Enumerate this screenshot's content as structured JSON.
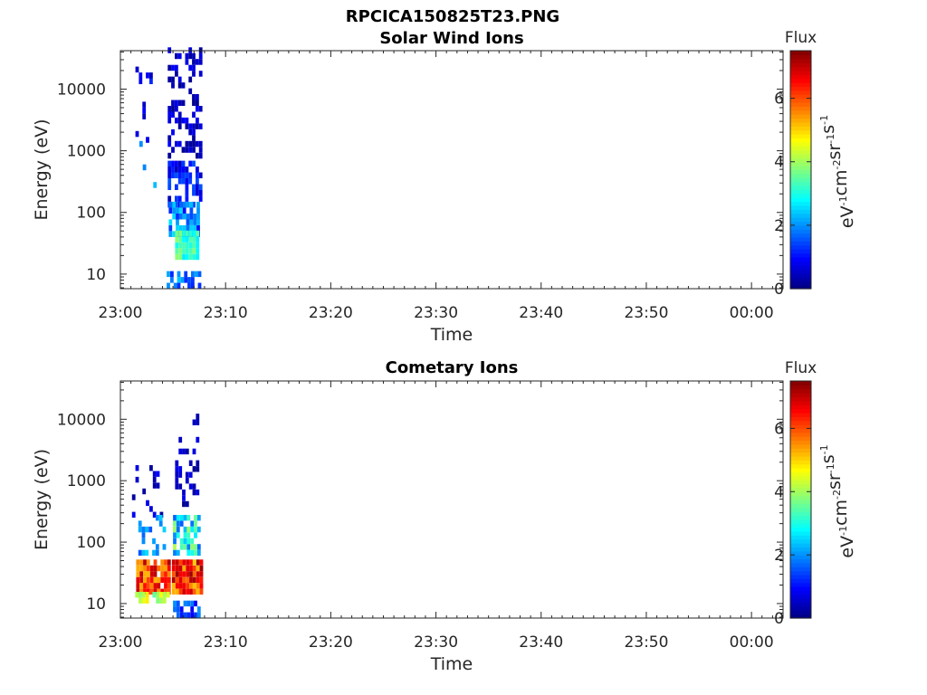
{
  "figure_title": "RPCICA150825T23.PNG",
  "colormap": "jet",
  "chart_data": [
    {
      "type": "heatmap",
      "title": "Solar Wind Ions",
      "xlabel": "Time",
      "ylabel": "Energy (eV)",
      "x_tick_labels": [
        "23:00",
        "23:10",
        "23:20",
        "23:30",
        "23:40",
        "23:50",
        "00:00"
      ],
      "x_range_minutes": [
        0,
        63
      ],
      "y_scale": "log",
      "y_tick_labels": [
        "10",
        "100",
        "1000",
        "10000"
      ],
      "y_tick_values": [
        10,
        100,
        1000,
        10000
      ],
      "y_range": [
        5.8,
        42000
      ],
      "colorbar": {
        "title": "Flux",
        "label": "eV-1cm-2sr-1s-1",
        "ticks": [
          "0",
          "2",
          "4",
          "6"
        ],
        "range": [
          0,
          7.5
        ]
      },
      "blocks": [
        {
          "t": [
            1.1,
            3.0
          ],
          "e": [
            700,
            20000
          ],
          "flux": [
            0.2,
            1.3
          ],
          "density": 0.16
        },
        {
          "t": [
            1.8,
            3.2
          ],
          "e": [
            250,
            3000
          ],
          "flux": [
            1.6,
            2.8
          ],
          "density": 0.04
        },
        {
          "t": [
            4.5,
            7.5
          ],
          "e": [
            600,
            40000
          ],
          "flux": [
            0.1,
            0.9
          ],
          "density": 0.42
        },
        {
          "t": [
            4.5,
            7.5
          ],
          "e": [
            120,
            600
          ],
          "flux": [
            0.4,
            1.6
          ],
          "density": 0.52
        },
        {
          "t": [
            4.6,
            7.5
          ],
          "e": [
            40,
            120
          ],
          "flux": [
            0.9,
            2.6
          ],
          "density": 0.85
        },
        {
          "t": [
            5.2,
            7.4
          ],
          "e": [
            17,
            50
          ],
          "flux": [
            2.7,
            3.9
          ],
          "density": 0.95
        },
        {
          "t": [
            4.4,
            7.5
          ],
          "e": [
            5.8,
            11
          ],
          "flux": [
            1.2,
            2.6
          ],
          "density": 0.7
        }
      ]
    },
    {
      "type": "heatmap",
      "title": "Cometary Ions",
      "xlabel": "Time",
      "ylabel": "Energy (eV)",
      "x_tick_labels": [
        "23:00",
        "23:10",
        "23:20",
        "23:30",
        "23:40",
        "23:50",
        "00:00"
      ],
      "x_range_minutes": [
        0,
        63
      ],
      "y_scale": "log",
      "y_tick_labels": [
        "10",
        "100",
        "1000",
        "10000"
      ],
      "y_tick_values": [
        10,
        100,
        1000,
        10000
      ],
      "y_range": [
        5.8,
        42000
      ],
      "colorbar": {
        "title": "Flux",
        "label": "eV-1cm-2sr-1s-1",
        "ticks": [
          "0",
          "2",
          "4",
          "6"
        ],
        "range": [
          0,
          7.5
        ]
      },
      "blocks": [
        {
          "t": [
            1.1,
            4.0
          ],
          "e": [
            250,
            2000
          ],
          "flux": [
            0.2,
            1.0
          ],
          "density": 0.18
        },
        {
          "t": [
            5.2,
            7.5
          ],
          "e": [
            300,
            12000
          ],
          "flux": [
            0.1,
            0.8
          ],
          "density": 0.28
        },
        {
          "t": [
            1.7,
            4.2
          ],
          "e": [
            60,
            250
          ],
          "flux": [
            1.4,
            2.6
          ],
          "density": 0.35
        },
        {
          "t": [
            5.0,
            7.6
          ],
          "e": [
            60,
            250
          ],
          "flux": [
            1.6,
            4.2
          ],
          "density": 0.75
        },
        {
          "t": [
            1.5,
            4.6
          ],
          "e": [
            14,
            45
          ],
          "flux": [
            5.2,
            7.2
          ],
          "density": 0.97
        },
        {
          "t": [
            4.9,
            7.6
          ],
          "e": [
            14,
            45
          ],
          "flux": [
            5.0,
            7.3
          ],
          "density": 0.97
        },
        {
          "t": [
            1.4,
            4.6
          ],
          "e": [
            10,
            15
          ],
          "flux": [
            3.5,
            5.0
          ],
          "density": 0.7
        },
        {
          "t": [
            5.0,
            7.5
          ],
          "e": [
            5.8,
            11
          ],
          "flux": [
            0.8,
            2.0
          ],
          "density": 0.5
        }
      ]
    }
  ]
}
